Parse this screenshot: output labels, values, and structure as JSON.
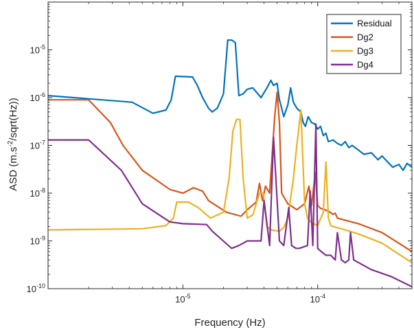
{
  "chart_data": {
    "type": "line",
    "xscale": "log",
    "yscale": "log",
    "xlabel": "Frequency (Hz)",
    "ylabel": "ASD (m.s^-2/sqrt(Hz))",
    "ylabel_parts": [
      "ASD (m.s",
      "-2",
      "/sqrt(Hz))"
    ],
    "xlim": [
      1e-06,
      0.0005
    ],
    "ylim": [
      1e-10,
      0.0001
    ],
    "grid": false,
    "legend_position": "top-right",
    "xticks": [
      {
        "value": 1e-05,
        "base": "10",
        "exp": "-5"
      },
      {
        "value": 0.0001,
        "base": "10",
        "exp": "-4"
      }
    ],
    "yticks": [
      {
        "value": 1e-05,
        "base": "10",
        "exp": "-5"
      },
      {
        "value": 1e-06,
        "base": "10",
        "exp": "-6"
      },
      {
        "value": 1e-07,
        "base": "10",
        "exp": "-7"
      },
      {
        "value": 1e-08,
        "base": "10",
        "exp": "-8"
      },
      {
        "value": 1e-09,
        "base": "10",
        "exp": "-9"
      },
      {
        "value": 1e-10,
        "base": "10",
        "exp": "-10"
      }
    ],
    "series": [
      {
        "name": "Residual",
        "color": "#0072BD",
        "x": [
          1e-06,
          4.2e-06,
          6e-06,
          7.5e-06,
          8.2e-06,
          8.8e-06,
          1.18e-05,
          1.28e-05,
          1.4e-05,
          1.55e-05,
          1.65e-05,
          1.8e-05,
          2e-05,
          2.15e-05,
          2.3e-05,
          2.45e-05,
          2.6e-05,
          2.8e-05,
          3e-05,
          3.3e-05,
          3.8e-05,
          4.2e-05,
          4.5e-05,
          4.7e-05,
          5e-05,
          5.2e-05,
          5.4e-05,
          5.6e-05,
          6e-05,
          6.3e-05,
          6.6e-05,
          7e-05,
          7.5e-05,
          7.8e-05,
          8.1e-05,
          8.5e-05,
          9e-05,
          9.5e-05,
          0.0001,
          0.000105,
          0.00011,
          0.000115,
          0.00012,
          0.00013,
          0.00014,
          0.00015,
          0.00016,
          0.00017,
          0.00018,
          0.0002,
          0.00022,
          0.00025,
          0.00028,
          0.0003,
          0.00033,
          0.00036,
          0.0004,
          0.00043,
          0.00046,
          0.0005
        ],
        "y": [
          1.1e-06,
          8e-07,
          4.7e-07,
          5.5e-07,
          9e-07,
          2.8e-06,
          2.7e-06,
          1.8e-06,
          1e-06,
          6e-07,
          5e-07,
          6e-07,
          1.2e-06,
          1.6e-05,
          1.6e-05,
          1.4e-05,
          1.1e-06,
          1.2e-06,
          1.5e-06,
          1.6e-06,
          1e-06,
          1.6e-06,
          2.3e-06,
          1.8e-06,
          2e-06,
          9e-07,
          6e-07,
          4e-07,
          7e-07,
          1.6e-06,
          8e-07,
          6e-07,
          5e-07,
          3e-07,
          2.5e-07,
          4e-07,
          3e-07,
          2.8e-07,
          2.2e-07,
          2.5e-07,
          1.6e-07,
          1.8e-07,
          1.2e-07,
          1.3e-07,
          1.1e-07,
          1e-07,
          1.2e-07,
          9e-08,
          1e-07,
          8e-08,
          6.5e-08,
          7e-08,
          5e-08,
          6e-08,
          4.5e-08,
          3.5e-08,
          4e-08,
          3e-08,
          4.2e-08,
          3.5e-08
        ]
      },
      {
        "name": "Dg2",
        "color": "#D95319",
        "x": [
          1e-06,
          2e-06,
          2.9e-06,
          3.6e-06,
          5e-06,
          8e-06,
          1e-05,
          1.2e-05,
          1.4e-05,
          1.55e-05,
          2.1e-05,
          2.7e-05,
          3e-05,
          3.5e-05,
          3.7e-05,
          3.9e-05,
          4.1e-05,
          4.4e-05,
          4.8e-05,
          5e-05,
          5.2e-05,
          5.4e-05,
          6e-05,
          7e-05,
          8e-05,
          8.6e-05,
          9e-05,
          9.6e-05,
          0.0001,
          0.000105,
          0.00011,
          0.000115,
          0.00012,
          0.00013,
          0.000135,
          0.00014,
          0.0002,
          0.0003,
          0.0005
        ],
        "y": [
          9e-07,
          9e-07,
          3e-07,
          1e-07,
          3e-08,
          1.2e-08,
          1e-08,
          1.3e-08,
          1.1e-08,
          7e-09,
          4e-09,
          3.3e-09,
          4.5e-09,
          6.5e-09,
          1.6e-08,
          7e-09,
          1.4e-08,
          1e-08,
          4e-07,
          1.3e-06,
          3e-07,
          1e-08,
          6e-09,
          4.5e-09,
          6e-09,
          1.4e-08,
          5.5e-09,
          2.7e-08,
          5.5e-09,
          4.8e-09,
          4.6e-09,
          4.4e-09,
          4.2e-09,
          3.6e-09,
          3.8e-09,
          3e-09,
          2.3e-09,
          1.5e-09,
          6e-10
        ]
      },
      {
        "name": "Dg3",
        "color": "#EDB120",
        "x": [
          1e-06,
          5e-06,
          7.5e-06,
          8.5e-06,
          9e-06,
          1.1e-05,
          1.3e-05,
          1.6e-05,
          2e-05,
          2.2e-05,
          2.35e-05,
          2.5e-05,
          2.65e-05,
          2.8e-05,
          3e-05,
          3.3e-05,
          3.7e-05,
          3.95e-05,
          4.2e-05,
          4.5e-05,
          5.2e-05,
          5.6e-05,
          6e-05,
          6.6e-05,
          7e-05,
          7.5e-05,
          8e-05,
          8.4e-05,
          9e-05,
          0.0001,
          0.00011,
          0.000115,
          0.00012,
          0.000125,
          0.00013,
          0.00015,
          0.0002,
          0.0003,
          0.0005
        ],
        "y": [
          1.7e-09,
          1.8e-09,
          2.1e-09,
          3e-09,
          6.5e-09,
          6.5e-09,
          5e-09,
          3e-09,
          4e-09,
          2e-08,
          2e-07,
          3.5e-07,
          3.5e-07,
          2e-08,
          3e-09,
          3.5e-09,
          1e-08,
          1e-08,
          2e-09,
          1.7e-09,
          1.6e-09,
          1.9e-09,
          3e-09,
          2e-08,
          1e-07,
          5.5e-07,
          6e-09,
          3e-09,
          2.4e-09,
          2.1e-09,
          4e-09,
          4.5e-08,
          3e-09,
          2.1e-09,
          2e-09,
          1.8e-09,
          1.4e-09,
          9e-10,
          3.5e-10
        ]
      },
      {
        "name": "Dg4",
        "color": "#7E2F8E",
        "x": [
          1e-06,
          2e-06,
          3.5e-06,
          5e-06,
          8e-06,
          1e-05,
          1.5e-05,
          1.65e-05,
          2.3e-05,
          2.6e-05,
          3e-05,
          3.8e-05,
          4e-05,
          4.4e-05,
          4.7e-05,
          5.2e-05,
          5.6e-05,
          6.1e-05,
          6.4e-05,
          6.9e-05,
          7.3e-05,
          8.4e-05,
          8.8e-05,
          9.2e-05,
          9.7e-05,
          0.0001,
          0.000106,
          0.000115,
          0.000125,
          0.000135,
          0.00014,
          0.00015,
          0.00016,
          0.00017,
          0.000175,
          0.000185,
          0.00025,
          0.00035,
          0.0005
        ],
        "y": [
          1.3e-07,
          1.3e-07,
          3e-08,
          6e-09,
          2.5e-09,
          2.3e-09,
          2.2e-09,
          1.6e-09,
          7e-10,
          8e-10,
          1e-09,
          1e-09,
          7e-09,
          8e-10,
          1.5e-07,
          1e-09,
          8e-10,
          5e-09,
          8e-10,
          7e-10,
          7e-10,
          8e-10,
          1.1e-08,
          8e-10,
          2.8e-07,
          7e-10,
          6e-10,
          5e-10,
          5e-10,
          4e-10,
          1.5e-09,
          4e-10,
          3.5e-10,
          4e-10,
          1.5e-09,
          4e-10,
          2.5e-10,
          1.8e-10,
          1.1e-10
        ]
      }
    ]
  }
}
